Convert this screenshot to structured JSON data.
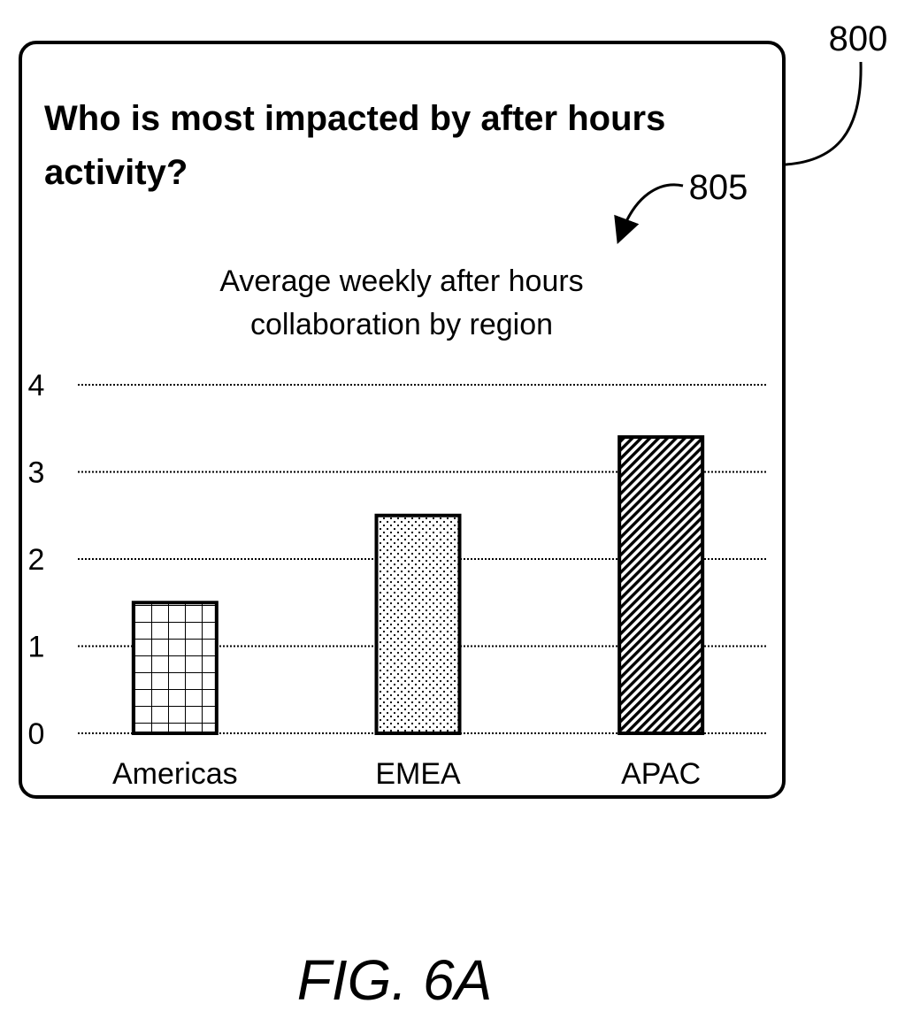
{
  "figure": {
    "ref_panel": "800",
    "ref_chart": "805",
    "caption": "FIG. 6A"
  },
  "panel": {
    "title_lines": [
      "Who is most impacted by after hours",
      "activity?"
    ]
  },
  "chart_data": {
    "type": "bar",
    "title_lines": [
      "Average weekly after hours",
      "collaboration by region"
    ],
    "categories": [
      "Americas",
      "EMEA",
      "APAC"
    ],
    "values": [
      1.5,
      2.5,
      3.4
    ],
    "patterns": [
      "grid",
      "dots",
      "diagonal-hatch"
    ],
    "ylim": [
      0,
      4
    ],
    "yticks": [
      "0",
      "1",
      "2",
      "3",
      "4"
    ],
    "grid": true,
    "xlabel": "",
    "ylabel": ""
  }
}
